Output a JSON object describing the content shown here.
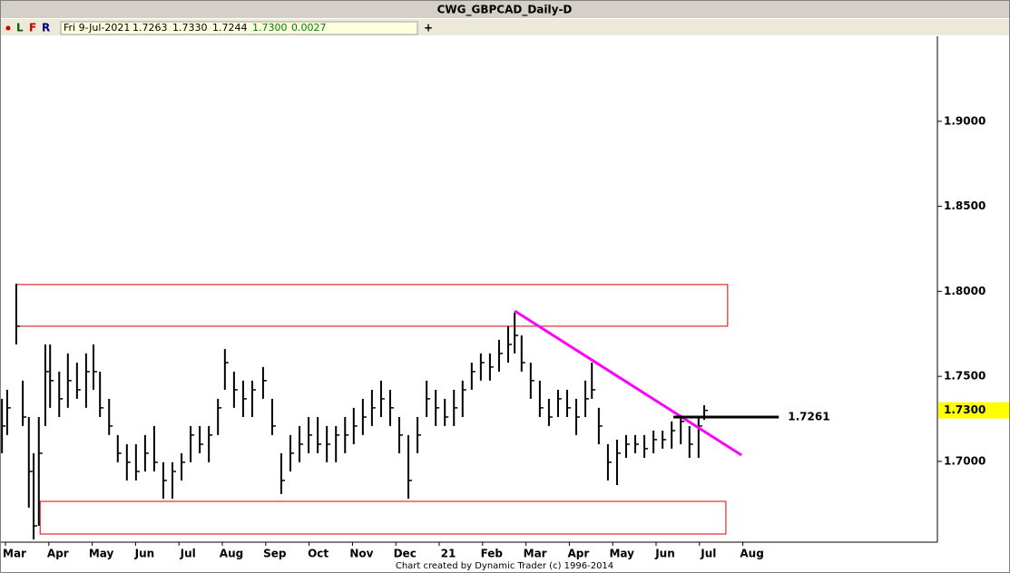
{
  "header": {
    "title": "CWG_GBPCAD_Daily-D",
    "tools": [
      "L",
      "F",
      "R"
    ],
    "add": "+"
  },
  "info": {
    "date": "Fri 9-Jul-2021",
    "open": "1.7263",
    "high": "1.7330",
    "low": "1.7244",
    "close": "1.7300",
    "change": "0.0027"
  },
  "footer": "Chart created by Dynamic Trader  (c)  1996-2014",
  "chart_data": {
    "type": "hlc",
    "color": "#000000",
    "x": [
      -0.29,
      -0.17,
      0.04,
      0.19,
      0.33,
      0.44,
      0.56,
      0.71,
      0.82,
      1.03,
      1.23,
      1.44,
      1.65,
      1.82,
      1.97,
      2.18,
      2.38,
      2.59,
      2.8,
      3.01,
      3.22,
      3.43,
      3.64,
      3.85,
      4.06,
      4.27,
      4.48,
      4.69,
      4.85,
      5.06,
      5.27,
      5.48,
      5.73,
      5.94,
      6.15,
      6.36,
      6.57,
      6.78,
      6.99,
      7.2,
      7.41,
      7.62,
      7.82,
      8.03,
      8.24,
      8.45,
      8.66,
      8.87,
      9.08,
      9.29,
      9.5,
      9.71,
      9.92,
      10.13,
      10.33,
      10.54,
      10.75,
      10.96,
      11.17,
      11.38,
      11.53,
      11.69,
      11.9,
      12.11,
      12.32,
      12.53,
      12.74,
      12.95,
      13.16,
      13.31,
      13.47,
      13.68,
      13.89,
      14.1,
      14.31,
      14.52,
      14.73,
      14.94,
      15.15,
      15.36,
      15.56,
      15.77,
      15.9
    ],
    "high": [
      1.7368,
      1.7421,
      1.8045,
      1.7475,
      1.7261,
      1.7048,
      1.7261,
      1.7688,
      1.7688,
      1.7528,
      1.7635,
      1.7581,
      1.7635,
      1.7688,
      1.7528,
      1.7368,
      1.7155,
      1.7101,
      1.7101,
      1.7155,
      1.7208,
      1.6995,
      1.6995,
      1.7048,
      1.7208,
      1.7208,
      1.7208,
      1.7368,
      1.7661,
      1.7528,
      1.7475,
      1.7475,
      1.7555,
      1.7368,
      1.7048,
      1.7155,
      1.7208,
      1.7261,
      1.7261,
      1.7208,
      1.7208,
      1.7261,
      1.7315,
      1.7368,
      1.7421,
      1.7475,
      1.7421,
      1.7261,
      1.7155,
      1.7261,
      1.7475,
      1.7421,
      1.7368,
      1.7421,
      1.7475,
      1.7581,
      1.7635,
      1.7635,
      1.7715,
      1.7795,
      1.7875,
      1.7741,
      1.7581,
      1.7475,
      1.7368,
      1.7421,
      1.7421,
      1.7368,
      1.7475,
      1.7581,
      1.7315,
      1.7101,
      1.7128,
      1.7155,
      1.7155,
      1.7155,
      1.7181,
      1.7181,
      1.7235,
      1.7261,
      1.7208,
      1.7261,
      1.733
    ],
    "low": [
      1.7048,
      1.7155,
      1.7688,
      1.7208,
      1.6728,
      1.6541,
      1.6621,
      1.7208,
      1.7315,
      1.7261,
      1.7315,
      1.7368,
      1.7315,
      1.7421,
      1.7261,
      1.7155,
      1.6995,
      1.6888,
      1.6888,
      1.6941,
      1.6941,
      1.6781,
      1.6781,
      1.6888,
      1.6995,
      1.7048,
      1.6995,
      1.7155,
      1.7421,
      1.7315,
      1.7261,
      1.7261,
      1.7368,
      1.7155,
      1.6808,
      1.6941,
      1.6995,
      1.7048,
      1.7048,
      1.6995,
      1.6995,
      1.7048,
      1.7101,
      1.7155,
      1.7208,
      1.7261,
      1.7208,
      1.7048,
      1.6781,
      1.7048,
      1.7261,
      1.7208,
      1.7208,
      1.7208,
      1.7261,
      1.7421,
      1.7475,
      1.7475,
      1.7528,
      1.7581,
      1.7635,
      1.7528,
      1.7368,
      1.7261,
      1.7208,
      1.7261,
      1.7261,
      1.7155,
      1.7261,
      1.7368,
      1.7101,
      1.6888,
      1.6861,
      1.7021,
      1.7048,
      1.7021,
      1.7048,
      1.7075,
      1.7075,
      1.7101,
      1.7021,
      1.7021,
      1.7244
    ],
    "close": [
      1.7208,
      1.7315,
      1.7795,
      1.7261,
      1.6941,
      1.6621,
      1.7048,
      1.7528,
      1.7475,
      1.7368,
      1.7475,
      1.7421,
      1.7528,
      1.7528,
      1.7315,
      1.7208,
      1.7048,
      1.6995,
      1.6941,
      1.7048,
      1.6995,
      1.6888,
      1.6941,
      1.6995,
      1.7155,
      1.7101,
      1.7155,
      1.7315,
      1.7581,
      1.7421,
      1.7368,
      1.7421,
      1.7475,
      1.7208,
      1.6888,
      1.7048,
      1.7101,
      1.7155,
      1.7101,
      1.7101,
      1.7155,
      1.7155,
      1.7208,
      1.7261,
      1.7315,
      1.7368,
      1.7315,
      1.7155,
      1.6888,
      1.7155,
      1.7368,
      1.7315,
      1.7261,
      1.7315,
      1.7421,
      1.7528,
      1.7581,
      1.7555,
      1.7635,
      1.7688,
      1.7741,
      1.7581,
      1.7475,
      1.7315,
      1.7261,
      1.7368,
      1.7315,
      1.7261,
      1.7368,
      1.7421,
      1.7208,
      1.6995,
      1.7048,
      1.7101,
      1.7101,
      1.7075,
      1.7128,
      1.7128,
      1.7181,
      1.7235,
      1.7101,
      1.7208,
      1.73
    ],
    "xlim": [
      -0.335,
      21.276
    ],
    "ylim": [
      1.6525,
      1.95
    ],
    "xticks": [
      {
        "value": 0,
        "label": "Mar"
      },
      {
        "value": 1,
        "label": "Apr"
      },
      {
        "value": 2,
        "label": "May"
      },
      {
        "value": 3,
        "label": "Jun"
      },
      {
        "value": 4,
        "label": "Jul"
      },
      {
        "value": 5,
        "label": "Aug"
      },
      {
        "value": 6,
        "label": "Sep"
      },
      {
        "value": 7,
        "label": "Oct"
      },
      {
        "value": 8,
        "label": "Nov"
      },
      {
        "value": 9,
        "label": "Dec"
      },
      {
        "value": 10,
        "label": "21"
      },
      {
        "value": 11,
        "label": "Feb"
      },
      {
        "value": 12,
        "label": "Mar"
      },
      {
        "value": 13,
        "label": "Apr"
      },
      {
        "value": 14,
        "label": "May"
      },
      {
        "value": 15,
        "label": "Jun"
      },
      {
        "value": 16,
        "label": "Jul"
      },
      {
        "value": 17,
        "label": "Aug"
      }
    ],
    "yticks": [
      {
        "value": 1.7,
        "label": "1.7000"
      },
      {
        "value": 1.75,
        "label": "1.7500"
      },
      {
        "value": 1.8,
        "label": "1.8000"
      },
      {
        "value": 1.85,
        "label": "1.8500"
      },
      {
        "value": 1.9,
        "label": "1.9000"
      }
    ],
    "zones": [
      {
        "top": 1.804,
        "bottom": 1.7795,
        "x": [
          0.04,
          16.44
        ],
        "color": "#e00000"
      },
      {
        "top": 1.6765,
        "bottom": 1.6573,
        "x": [
          0.59,
          16.4
        ],
        "color": "#e00000"
      }
    ],
    "trendline": {
      "x": [
        11.53,
        16.76
      ],
      "y": [
        1.7885,
        1.7037
      ],
      "color": "#ff00ff"
    },
    "level": {
      "x": [
        15.19,
        17.62
      ],
      "value": 1.7261,
      "label": "1.7261",
      "color": "#000000"
    },
    "last_price": {
      "value": 1.73,
      "label": "1.7300",
      "color": "#ffff00"
    }
  }
}
